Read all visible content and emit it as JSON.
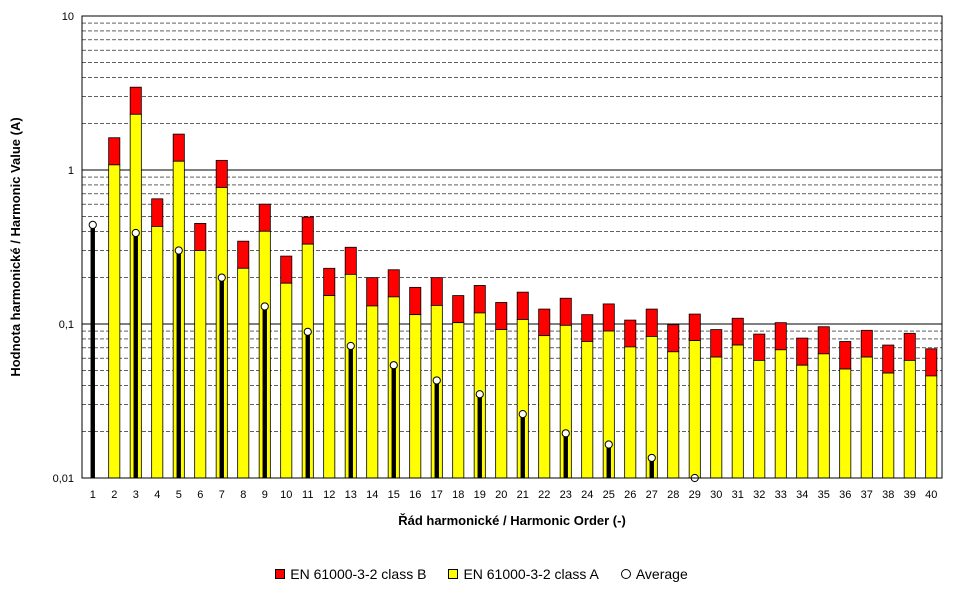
{
  "chart_data": {
    "type": "bar",
    "ylabel": "Hodnota harmonické / Harmonic Value (A)",
    "xlabel": "Řád harmonické / Harmonic Order (-)",
    "yscale": "log",
    "ylim": [
      0.01,
      10
    ],
    "y_tick_labels": [
      "0,01",
      "0,1",
      "1",
      "10"
    ],
    "y_tick_values": [
      0.01,
      0.1,
      1,
      10
    ],
    "grid": true,
    "legend_position": "bottom",
    "categories": [
      "1",
      "2",
      "3",
      "4",
      "5",
      "6",
      "7",
      "8",
      "9",
      "10",
      "11",
      "12",
      "13",
      "14",
      "15",
      "16",
      "17",
      "18",
      "19",
      "20",
      "21",
      "22",
      "23",
      "24",
      "25",
      "26",
      "27",
      "28",
      "29",
      "30",
      "31",
      "32",
      "33",
      "34",
      "35",
      "36",
      "37",
      "38",
      "39",
      "40"
    ],
    "series": [
      {
        "name": "EN 61000-3-2  class B",
        "color": "#ff0000",
        "values": [
          null,
          1.62,
          3.45,
          0.65,
          1.71,
          0.45,
          1.155,
          0.345,
          0.6,
          0.276,
          0.495,
          0.23,
          0.315,
          0.2,
          0.225,
          0.173,
          0.2,
          0.153,
          0.178,
          0.138,
          0.161,
          0.125,
          0.147,
          0.115,
          0.135,
          0.106,
          0.125,
          0.099,
          0.116,
          0.092,
          0.109,
          0.086,
          0.102,
          0.081,
          0.096,
          0.077,
          0.091,
          0.073,
          0.087,
          0.069
        ]
      },
      {
        "name": "EN 61000-3-2  class A",
        "color": "#ffff00",
        "values": [
          null,
          1.08,
          2.3,
          0.43,
          1.14,
          0.3,
          0.77,
          0.23,
          0.4,
          0.184,
          0.33,
          0.153,
          0.21,
          0.131,
          0.15,
          0.115,
          0.132,
          0.102,
          0.118,
          0.092,
          0.107,
          0.084,
          0.098,
          0.077,
          0.09,
          0.071,
          0.083,
          0.066,
          0.078,
          0.061,
          0.073,
          0.058,
          0.068,
          0.054,
          0.064,
          0.051,
          0.061,
          0.048,
          0.058,
          0.046
        ]
      },
      {
        "name": "Average",
        "color": "#000000",
        "values": [
          0.44,
          null,
          0.39,
          null,
          0.3,
          null,
          0.2,
          null,
          0.13,
          null,
          0.089,
          null,
          0.072,
          null,
          0.054,
          null,
          0.043,
          null,
          0.035,
          null,
          0.026,
          null,
          0.0195,
          null,
          0.0165,
          null,
          0.0135,
          null,
          0.01,
          null,
          null,
          null,
          null,
          null,
          null,
          null,
          null,
          null,
          null,
          null
        ]
      }
    ]
  }
}
